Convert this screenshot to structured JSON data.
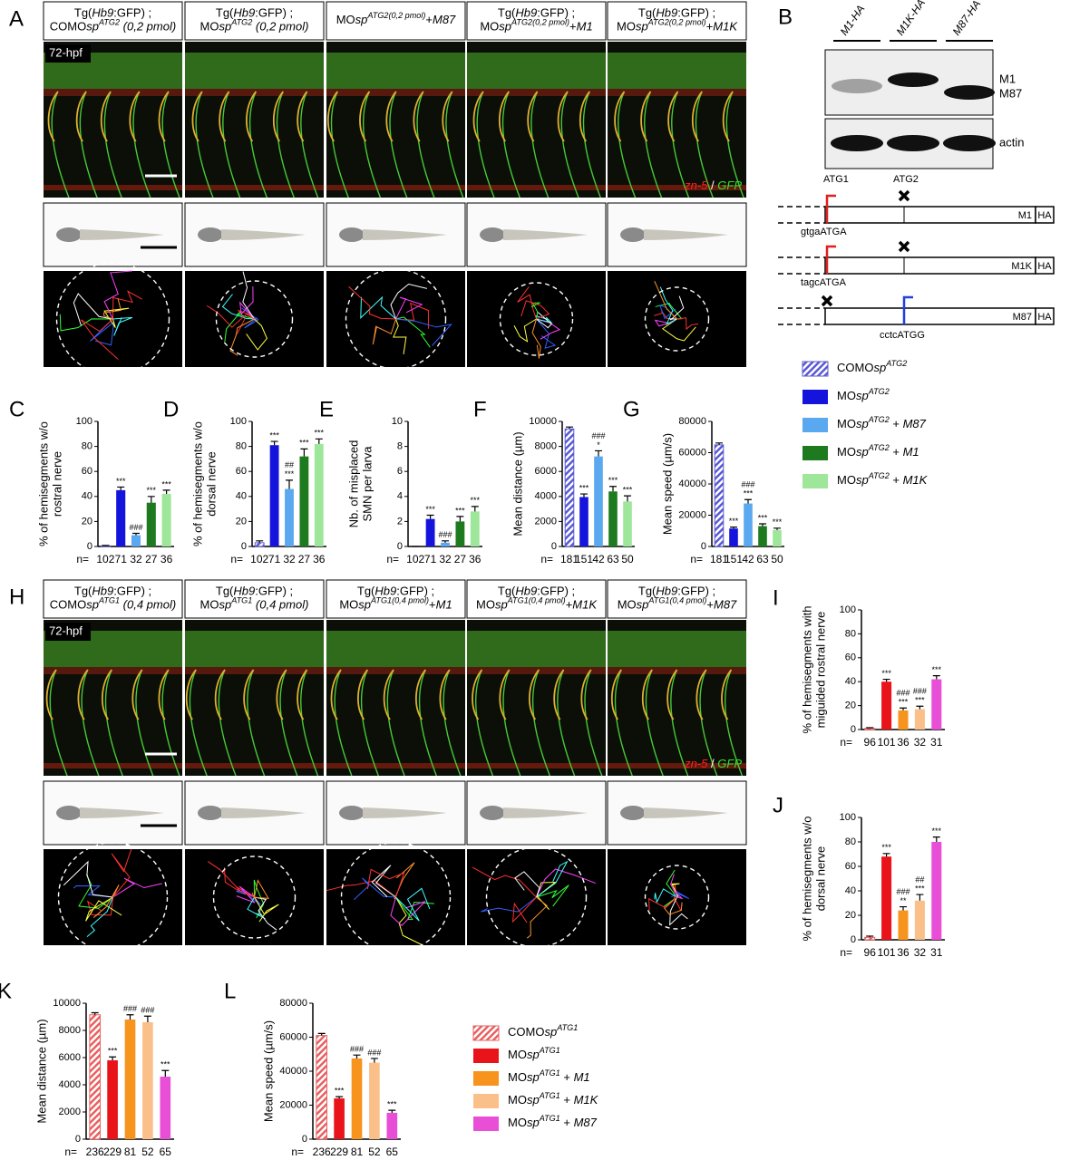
{
  "panel_a": {
    "letter": "A",
    "stage": "72-hpf",
    "stain": [
      {
        "t": "zn-5",
        "s": "ir"
      },
      {
        "t": " / "
      },
      {
        "t": "GFP",
        "s": "ig"
      }
    ],
    "headers": [
      [
        [
          {
            "t": "Tg("
          },
          {
            "t": "Hb9",
            "s": "i"
          },
          {
            "t": ":GFP) ;"
          }
        ],
        [
          {
            "t": "COMO"
          },
          {
            "t": "sp",
            "s": "i"
          },
          {
            "t": "ATG2",
            "s": "sup"
          },
          {
            "t": " (0,2 pmol)",
            "s": "i"
          }
        ]
      ],
      [
        [
          {
            "t": "Tg("
          },
          {
            "t": "Hb9",
            "s": "i"
          },
          {
            "t": ":GFP) ;"
          }
        ],
        [
          {
            "t": "MO"
          },
          {
            "t": "sp",
            "s": "i"
          },
          {
            "t": "ATG2",
            "s": "sup"
          },
          {
            "t": " (0,2 pmol)",
            "s": "i"
          }
        ]
      ],
      [
        [
          {
            "t": "MO"
          },
          {
            "t": "sp",
            "s": "i"
          },
          {
            "t": "ATG2(0,2 pmol)",
            "s": "sup"
          },
          {
            "t": "+"
          },
          {
            "t": "M87",
            "s": "i"
          }
        ]
      ],
      [
        [
          {
            "t": "Tg("
          },
          {
            "t": "Hb9",
            "s": "i"
          },
          {
            "t": ":GFP) ;"
          }
        ],
        [
          {
            "t": "MO"
          },
          {
            "t": "sp",
            "s": "i"
          },
          {
            "t": "ATG2(0,2 pmol)",
            "s": "sup"
          },
          {
            "t": "+"
          },
          {
            "t": "M1",
            "s": "i"
          }
        ]
      ],
      [
        [
          {
            "t": "Tg("
          },
          {
            "t": "Hb9",
            "s": "i"
          },
          {
            "t": ":GFP) ;"
          }
        ],
        [
          {
            "t": "MO"
          },
          {
            "t": "sp",
            "s": "i"
          },
          {
            "t": "ATG2(0,2 pmol)",
            "s": "sup"
          },
          {
            "t": "+"
          },
          {
            "t": "M1K",
            "s": "i"
          }
        ]
      ]
    ]
  },
  "panel_b": {
    "letter": "B",
    "lanes": [
      "M1-HA",
      "M1K-HA",
      "M87-HA"
    ],
    "bands": [
      "M1",
      "M87"
    ],
    "loading": "actin",
    "constructs": [
      {
        "start": "ATG1",
        "site": "ATG2",
        "seq": "gtgaATGA",
        "name": "M1",
        "tag": "HA"
      },
      {
        "seq": "tagcATGA",
        "name": "M1K",
        "tag": "HA"
      },
      {
        "seq": "cctcATGG",
        "name": "M87",
        "tag": "HA"
      }
    ]
  },
  "charts_top": [
    {
      "type": "bar",
      "letter": "C",
      "ylabel": [
        "% of hemisegments w/o",
        "rostral nerve"
      ],
      "ylim": [
        0,
        100
      ],
      "yticks": [
        0,
        20,
        40,
        60,
        80,
        100
      ],
      "values": [
        0.5,
        45,
        9,
        35,
        42
      ],
      "errors": [
        0.3,
        2.5,
        1.5,
        5,
        3
      ],
      "colors": [
        "#5a5ad2",
        "#1414dc",
        "#5aa8f0",
        "#1e7a1e",
        "#9ee69a"
      ],
      "hatched": [
        true,
        false,
        false,
        false,
        false
      ],
      "n_label": "n=",
      "n": [
        102,
        71,
        32,
        27,
        36
      ],
      "annotations": [
        [],
        [
          "***"
        ],
        [
          "###"
        ],
        [
          "***"
        ],
        [
          "***"
        ]
      ]
    },
    {
      "type": "bar",
      "letter": "D",
      "ylabel": [
        "% of hemisegments w/o",
        "dorsal nerve"
      ],
      "ylim": [
        0,
        100
      ],
      "yticks": [
        0,
        20,
        40,
        60,
        80,
        100
      ],
      "values": [
        3,
        81,
        46,
        72,
        82
      ],
      "errors": [
        1.5,
        3,
        7,
        6,
        4
      ],
      "colors": [
        "#5a5ad2",
        "#1414dc",
        "#5aa8f0",
        "#1e7a1e",
        "#9ee69a"
      ],
      "hatched": [
        true,
        false,
        false,
        false,
        false
      ],
      "n_label": "n=",
      "n": [
        102,
        71,
        32,
        27,
        36
      ],
      "annotations": [
        [],
        [
          "***"
        ],
        [
          "##",
          "***"
        ],
        [
          "***"
        ],
        [
          "***"
        ]
      ]
    },
    {
      "type": "bar",
      "letter": "E",
      "ylabel": [
        "Nb. of misplaced",
        "SMN per larva"
      ],
      "ylim": [
        0,
        10
      ],
      "yticks": [
        0,
        2,
        4,
        6,
        8,
        10
      ],
      "values": [
        0,
        2.2,
        0.3,
        2.0,
        2.8
      ],
      "errors": [
        0,
        0.3,
        0.15,
        0.4,
        0.4
      ],
      "colors": [
        "#5a5ad2",
        "#1414dc",
        "#5aa8f0",
        "#1e7a1e",
        "#9ee69a"
      ],
      "hatched": [
        true,
        false,
        false,
        false,
        false
      ],
      "n_label": "n=",
      "n": [
        102,
        71,
        32,
        27,
        36
      ],
      "annotations": [
        [],
        [
          "***"
        ],
        [
          "###"
        ],
        [
          "***"
        ],
        [
          "***"
        ]
      ]
    },
    {
      "type": "bar",
      "letter": "F",
      "ylabel": [
        "Mean distance (µm)"
      ],
      "ylim": [
        0,
        10000
      ],
      "yticks": [
        0,
        2000,
        4000,
        6000,
        8000,
        10000
      ],
      "values": [
        9400,
        3950,
        7200,
        4400,
        3600
      ],
      "errors": [
        150,
        250,
        450,
        400,
        450
      ],
      "colors": [
        "#5a5ad2",
        "#1414dc",
        "#5aa8f0",
        "#1e7a1e",
        "#9ee69a"
      ],
      "hatched": [
        true,
        false,
        false,
        false,
        false
      ],
      "n_label": "n=",
      "n": [
        181,
        151,
        42,
        63,
        50
      ],
      "annotations": [
        [],
        [
          "***"
        ],
        [
          "###",
          "*"
        ],
        [
          "***"
        ],
        [
          "***"
        ]
      ]
    },
    {
      "type": "bar",
      "letter": "G",
      "ylabel": [
        "Mean speed (µm/s)"
      ],
      "ylim": [
        0,
        80000
      ],
      "yticks": [
        0,
        20000,
        40000,
        60000,
        80000
      ],
      "values": [
        65000,
        11500,
        27500,
        13000,
        10500
      ],
      "errors": [
        1200,
        900,
        2500,
        1500,
        1200
      ],
      "colors": [
        "#5a5ad2",
        "#1414dc",
        "#5aa8f0",
        "#1e7a1e",
        "#9ee69a"
      ],
      "hatched": [
        true,
        false,
        false,
        false,
        false
      ],
      "n_label": "n=",
      "n": [
        181,
        151,
        42,
        63,
        50
      ],
      "annotations": [
        [],
        [
          "***"
        ],
        [
          "###",
          "***"
        ],
        [
          "***"
        ],
        [
          "***"
        ]
      ]
    }
  ],
  "legend_atg2": [
    {
      "parts": [
        {
          "t": "COMO"
        },
        {
          "t": "sp",
          "s": "i"
        },
        {
          "t": "ATG2",
          "s": "sup"
        }
      ],
      "color": "#5a5ad2",
      "hatched": true
    },
    {
      "parts": [
        {
          "t": "MO"
        },
        {
          "t": "sp",
          "s": "i"
        },
        {
          "t": "ATG2",
          "s": "sup"
        }
      ],
      "color": "#1414dc"
    },
    {
      "parts": [
        {
          "t": "MO"
        },
        {
          "t": "sp",
          "s": "i"
        },
        {
          "t": "ATG2",
          "s": "sup"
        },
        {
          "t": " + "
        },
        {
          "t": "M87",
          "s": "i"
        }
      ],
      "color": "#5aa8f0"
    },
    {
      "parts": [
        {
          "t": "MO"
        },
        {
          "t": "sp",
          "s": "i"
        },
        {
          "t": "ATG2",
          "s": "sup"
        },
        {
          "t": " + "
        },
        {
          "t": "M1",
          "s": "i"
        }
      ],
      "color": "#1e7a1e"
    },
    {
      "parts": [
        {
          "t": "MO"
        },
        {
          "t": "sp",
          "s": "i"
        },
        {
          "t": "ATG2",
          "s": "sup"
        },
        {
          "t": " + "
        },
        {
          "t": "M1K",
          "s": "i"
        }
      ],
      "color": "#9ee69a"
    }
  ],
  "panel_h": {
    "letter": "H",
    "stage": "72-hpf",
    "stain": [
      {
        "t": "zn-5",
        "s": "ir"
      },
      {
        "t": " / "
      },
      {
        "t": "GFP",
        "s": "ig"
      }
    ],
    "headers": [
      [
        [
          {
            "t": "Tg("
          },
          {
            "t": "Hb9",
            "s": "i"
          },
          {
            "t": ":GFP) ;"
          }
        ],
        [
          {
            "t": "COMO"
          },
          {
            "t": "sp",
            "s": "i"
          },
          {
            "t": "ATG1",
            "s": "sup"
          },
          {
            "t": " (0,4 pmol)",
            "s": "i"
          }
        ]
      ],
      [
        [
          {
            "t": "Tg("
          },
          {
            "t": "Hb9",
            "s": "i"
          },
          {
            "t": ":GFP) ;"
          }
        ],
        [
          {
            "t": "MO"
          },
          {
            "t": "sp",
            "s": "i"
          },
          {
            "t": "ATG1",
            "s": "sup"
          },
          {
            "t": " (0,4 pmol)",
            "s": "i"
          }
        ]
      ],
      [
        [
          {
            "t": "Tg("
          },
          {
            "t": "Hb9",
            "s": "i"
          },
          {
            "t": ":GFP) ;"
          }
        ],
        [
          {
            "t": "MO"
          },
          {
            "t": "sp",
            "s": "i"
          },
          {
            "t": "ATG1(0,4 pmol)",
            "s": "sup"
          },
          {
            "t": "+"
          },
          {
            "t": "M1",
            "s": "i"
          }
        ]
      ],
      [
        [
          {
            "t": "Tg("
          },
          {
            "t": "Hb9",
            "s": "i"
          },
          {
            "t": ":GFP) ;"
          }
        ],
        [
          {
            "t": "MO"
          },
          {
            "t": "sp",
            "s": "i"
          },
          {
            "t": "ATG1(0,4 pmol)",
            "s": "sup"
          },
          {
            "t": "+"
          },
          {
            "t": "M1K",
            "s": "i"
          }
        ]
      ],
      [
        [
          {
            "t": "Tg("
          },
          {
            "t": "Hb9",
            "s": "i"
          },
          {
            "t": ":GFP) ;"
          }
        ],
        [
          {
            "t": "MO"
          },
          {
            "t": "sp",
            "s": "i"
          },
          {
            "t": "ATG1(0,4 pmol)",
            "s": "sup"
          },
          {
            "t": "+"
          },
          {
            "t": "M87",
            "s": "i"
          }
        ]
      ]
    ]
  },
  "charts_side": [
    {
      "type": "bar",
      "letter": "I",
      "ylabel": [
        "% of hemisegments with",
        "miguided rostral nerve"
      ],
      "ylim": [
        0,
        100
      ],
      "yticks": [
        0,
        20,
        40,
        60,
        80,
        100
      ],
      "values": [
        1,
        40,
        16,
        17,
        42
      ],
      "errors": [
        0.5,
        2,
        2,
        2.5,
        3
      ],
      "colors": [
        "#e86060",
        "#e8141a",
        "#f7941d",
        "#fbc08a",
        "#e84fd6"
      ],
      "hatched": [
        true,
        false,
        false,
        false,
        false
      ],
      "n_label": "n=",
      "n": [
        96,
        101,
        36,
        32,
        31
      ],
      "annotations": [
        [],
        [
          "***"
        ],
        [
          "###",
          "***"
        ],
        [
          "###",
          "***"
        ],
        [
          "***"
        ]
      ]
    },
    {
      "type": "bar",
      "letter": "J",
      "ylabel": [
        "% of hemisegments w/o",
        "dorsal nerve"
      ],
      "ylim": [
        0,
        100
      ],
      "yticks": [
        0,
        20,
        40,
        60,
        80,
        100
      ],
      "values": [
        2,
        68,
        24,
        32,
        80
      ],
      "errors": [
        1,
        2.5,
        3,
        5,
        4
      ],
      "colors": [
        "#e86060",
        "#e8141a",
        "#f7941d",
        "#fbc08a",
        "#e84fd6"
      ],
      "hatched": [
        true,
        false,
        false,
        false,
        false
      ],
      "n_label": "n=",
      "n": [
        96,
        101,
        36,
        32,
        31
      ],
      "annotations": [
        [],
        [
          "***"
        ],
        [
          "###",
          "**"
        ],
        [
          "##",
          "***"
        ],
        [
          "***"
        ]
      ]
    }
  ],
  "charts_bottom": [
    {
      "type": "bar",
      "letter": "K",
      "ylabel": [
        "Mean distance (µm)"
      ],
      "ylim": [
        0,
        10000
      ],
      "yticks": [
        0,
        2000,
        4000,
        6000,
        8000,
        10000
      ],
      "values": [
        9150,
        5800,
        8800,
        8600,
        4600
      ],
      "errors": [
        150,
        250,
        350,
        450,
        450
      ],
      "colors": [
        "#e86060",
        "#e8141a",
        "#f7941d",
        "#fbc08a",
        "#e84fd6"
      ],
      "hatched": [
        true,
        false,
        false,
        false,
        false
      ],
      "n_label": "n=",
      "n": [
        236,
        229,
        81,
        52,
        65
      ],
      "annotations": [
        [],
        [
          "***"
        ],
        [
          "###"
        ],
        [
          "###"
        ],
        [
          "***"
        ]
      ]
    },
    {
      "type": "bar",
      "letter": "L",
      "ylabel": [
        "Mean speed (µm/s)"
      ],
      "ylim": [
        0,
        80000
      ],
      "yticks": [
        0,
        20000,
        40000,
        60000,
        80000
      ],
      "values": [
        61000,
        24000,
        47500,
        45000,
        15500
      ],
      "errors": [
        1200,
        1000,
        2000,
        2500,
        1500
      ],
      "colors": [
        "#e86060",
        "#e8141a",
        "#f7941d",
        "#fbc08a",
        "#e84fd6"
      ],
      "hatched": [
        true,
        false,
        false,
        false,
        false
      ],
      "n_label": "n=",
      "n": [
        236,
        229,
        81,
        52,
        65
      ],
      "annotations": [
        [],
        [
          "***"
        ],
        [
          "###"
        ],
        [
          "###"
        ],
        [
          "***"
        ]
      ]
    }
  ],
  "legend_atg1": [
    {
      "parts": [
        {
          "t": "COMO"
        },
        {
          "t": "sp",
          "s": "i"
        },
        {
          "t": "ATG1",
          "s": "sup"
        }
      ],
      "color": "#e86060",
      "hatched": true
    },
    {
      "parts": [
        {
          "t": "MO"
        },
        {
          "t": "sp",
          "s": "i"
        },
        {
          "t": "ATG1",
          "s": "sup"
        }
      ],
      "color": "#e8141a"
    },
    {
      "parts": [
        {
          "t": "MO"
        },
        {
          "t": "sp",
          "s": "i"
        },
        {
          "t": "ATG1",
          "s": "sup"
        },
        {
          "t": " + "
        },
        {
          "t": "M1",
          "s": "i"
        }
      ],
      "color": "#f7941d"
    },
    {
      "parts": [
        {
          "t": "MO"
        },
        {
          "t": "sp",
          "s": "i"
        },
        {
          "t": "ATG1",
          "s": "sup"
        },
        {
          "t": " + "
        },
        {
          "t": "M1K",
          "s": "i"
        }
      ],
      "color": "#fbc08a"
    },
    {
      "parts": [
        {
          "t": "MO"
        },
        {
          "t": "sp",
          "s": "i"
        },
        {
          "t": "ATG1",
          "s": "sup"
        },
        {
          "t": " + "
        },
        {
          "t": "M87",
          "s": "i"
        }
      ],
      "color": "#e84fd6"
    }
  ]
}
